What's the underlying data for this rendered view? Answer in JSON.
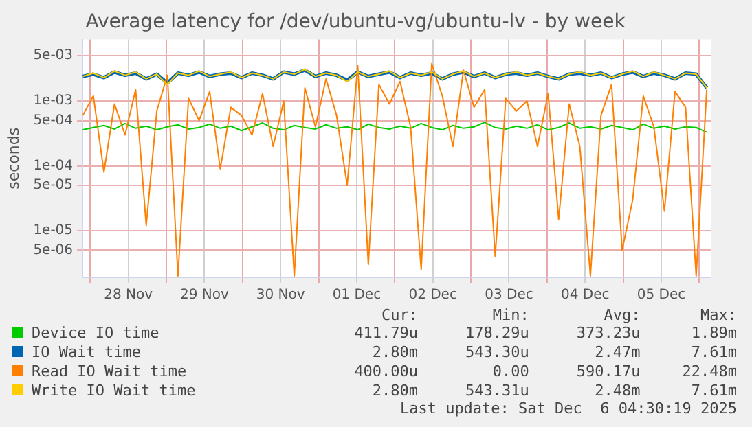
{
  "chart_data": {
    "type": "line",
    "title": "Average latency for /dev/ubuntu-vg/ubuntu-lv - by week",
    "ylabel": "seconds",
    "log": "y",
    "grid": true,
    "legend": "bottom",
    "marker": "none",
    "line_style": "solid",
    "x": [
      "2025-11-27T21:40",
      "2025-11-28T01:00",
      "2025-11-28T04:20",
      "2025-11-28T07:40",
      "2025-11-28T11:00",
      "2025-11-28T14:20",
      "2025-11-28T17:40",
      "2025-11-28T21:00",
      "2025-11-29T00:20",
      "2025-11-29T03:40",
      "2025-11-29T07:00",
      "2025-11-29T10:20",
      "2025-11-29T13:40",
      "2025-11-29T17:00",
      "2025-11-29T20:20",
      "2025-11-29T23:40",
      "2025-11-30T03:00",
      "2025-11-30T06:20",
      "2025-11-30T09:40",
      "2025-11-30T13:00",
      "2025-11-30T16:20",
      "2025-11-30T19:40",
      "2025-11-30T23:00",
      "2025-12-01T02:20",
      "2025-12-01T05:40",
      "2025-12-01T09:00",
      "2025-12-01T12:20",
      "2025-12-01T15:40",
      "2025-12-01T19:00",
      "2025-12-01T22:20",
      "2025-12-02T01:40",
      "2025-12-02T05:00",
      "2025-12-02T08:20",
      "2025-12-02T11:40",
      "2025-12-02T15:00",
      "2025-12-02T18:20",
      "2025-12-02T21:40",
      "2025-12-03T01:00",
      "2025-12-03T04:20",
      "2025-12-03T07:40",
      "2025-12-03T11:00",
      "2025-12-03T14:20",
      "2025-12-03T17:40",
      "2025-12-03T21:00",
      "2025-12-04T00:20",
      "2025-12-04T03:40",
      "2025-12-04T07:00",
      "2025-12-04T10:20",
      "2025-12-04T13:40",
      "2025-12-04T17:00",
      "2025-12-04T20:20",
      "2025-12-04T23:40",
      "2025-12-05T03:00",
      "2025-12-05T06:20",
      "2025-12-05T09:40",
      "2025-12-05T13:00",
      "2025-12-05T16:20",
      "2025-12-05T19:40",
      "2025-12-05T23:00",
      "2025-12-06T02:20"
    ],
    "xlim": [
      "2025-11-27T21:36",
      "2025-12-06T03:36"
    ],
    "xticks": [
      {
        "value": "2025-11-28",
        "label": null
      },
      {
        "value": "2025-11-28T12:00",
        "label": "28 Nov"
      },
      {
        "value": "2025-11-29",
        "label": null
      },
      {
        "value": "2025-11-29T12:00",
        "label": "29 Nov"
      },
      {
        "value": "2025-11-30",
        "label": null
      },
      {
        "value": "2025-11-30T12:00",
        "label": "30 Nov"
      },
      {
        "value": "2025-12-01",
        "label": null
      },
      {
        "value": "2025-12-01T12:00",
        "label": "01 Dec"
      },
      {
        "value": "2025-12-02",
        "label": null
      },
      {
        "value": "2025-12-02T12:00",
        "label": "02 Dec"
      },
      {
        "value": "2025-12-03",
        "label": null
      },
      {
        "value": "2025-12-03T12:00",
        "label": "03 Dec"
      },
      {
        "value": "2025-12-04",
        "label": null
      },
      {
        "value": "2025-12-04T12:00",
        "label": "04 Dec"
      },
      {
        "value": "2025-12-05",
        "label": null
      },
      {
        "value": "2025-12-05T12:00",
        "label": "05 Dec"
      },
      {
        "value": "2025-12-06",
        "label": null
      }
    ],
    "ylim": [
      1.9e-06,
      0.0089
    ],
    "yticks": [
      {
        "value": 5e-06,
        "label": "5e-06"
      },
      {
        "value": 1e-05,
        "label": "1e-05"
      },
      {
        "value": 5e-05,
        "label": "5e-05"
      },
      {
        "value": 0.0001,
        "label": "1e-04"
      },
      {
        "value": 0.0005,
        "label": "5e-04"
      },
      {
        "value": 0.001,
        "label": "1e-03"
      },
      {
        "value": 0.005,
        "label": "5e-03"
      }
    ],
    "series": [
      {
        "name": "Device IO time",
        "color": "#00cc00",
        "values": [
          0.00036,
          0.00039,
          0.00042,
          0.00037,
          0.00045,
          0.00038,
          0.00041,
          0.00036,
          0.0004,
          0.00043,
          0.00037,
          0.00039,
          0.00044,
          0.00038,
          0.00041,
          0.00035,
          0.0004,
          0.00046,
          0.00038,
          0.00036,
          0.00042,
          0.00039,
          0.00037,
          0.00043,
          0.00038,
          0.0004,
          0.00036,
          0.00044,
          0.00039,
          0.00037,
          0.00041,
          0.00038,
          0.00045,
          0.00039,
          0.00036,
          0.00042,
          0.00038,
          0.0004,
          0.00047,
          0.00039,
          0.00037,
          0.00041,
          0.00038,
          0.00043,
          0.00036,
          0.00039,
          0.00046,
          0.00038,
          0.0004,
          0.00037,
          0.00042,
          0.00039,
          0.00036,
          0.00044,
          0.00038,
          0.00041,
          0.00037,
          0.0004,
          0.00039,
          0.00033
        ]
      },
      {
        "name": "IO Wait time",
        "color": "#0066b3",
        "values": [
          0.0024,
          0.0026,
          0.0023,
          0.0028,
          0.0025,
          0.0027,
          0.0022,
          0.0026,
          0.0019,
          0.0027,
          0.0025,
          0.0028,
          0.0024,
          0.0026,
          0.0027,
          0.0023,
          0.0027,
          0.0025,
          0.0022,
          0.0028,
          0.0026,
          0.003,
          0.0024,
          0.0027,
          0.0025,
          0.0021,
          0.0028,
          0.0024,
          0.0026,
          0.0028,
          0.0023,
          0.0027,
          0.0025,
          0.0027,
          0.0022,
          0.0026,
          0.0028,
          0.0024,
          0.0027,
          0.0023,
          0.0026,
          0.0027,
          0.0025,
          0.0027,
          0.0024,
          0.0022,
          0.0026,
          0.0027,
          0.0025,
          0.0027,
          0.0023,
          0.0026,
          0.0028,
          0.0024,
          0.0027,
          0.0025,
          0.0022,
          0.0027,
          0.0026,
          0.0016
        ]
      },
      {
        "name": "Read IO Wait time",
        "color": "#ff8000",
        "values": [
          0.0006,
          0.0012,
          8e-05,
          0.0009,
          0.0003,
          0.0015,
          1.2e-05,
          0.0007,
          0.0025,
          2e-06,
          0.0011,
          0.0005,
          0.0014,
          9e-05,
          0.0008,
          0.0006,
          0.0003,
          0.0013,
          0.0002,
          0.001,
          2e-06,
          0.0016,
          0.0004,
          0.0022,
          0.0006,
          5e-05,
          0.0035,
          3e-06,
          0.0018,
          0.0009,
          0.002,
          0.0004,
          2.5e-06,
          0.0038,
          0.0012,
          0.0002,
          0.003,
          0.0008,
          0.0015,
          4e-06,
          0.0011,
          0.0007,
          0.001,
          0.0002,
          0.0013,
          1.5e-05,
          0.0009,
          0.0002,
          2e-06,
          0.0006,
          0.0018,
          5e-06,
          3e-05,
          0.0012,
          0.0004,
          2e-05,
          0.0014,
          0.0008,
          2e-06,
          0.0015
        ]
      },
      {
        "name": "Write IO Wait time",
        "color": "#ffcc00",
        "values": [
          0.0024,
          0.0027,
          0.0023,
          0.0029,
          0.0025,
          0.0028,
          0.0022,
          0.0026,
          0.0018,
          0.0027,
          0.0025,
          0.0029,
          0.0024,
          0.0026,
          0.0028,
          0.0023,
          0.0027,
          0.0025,
          0.0022,
          0.0028,
          0.0026,
          0.0031,
          0.0024,
          0.0027,
          0.0025,
          0.002,
          0.0028,
          0.0024,
          0.0026,
          0.0029,
          0.0023,
          0.0027,
          0.0025,
          0.0028,
          0.0022,
          0.0026,
          0.0029,
          0.0024,
          0.0027,
          0.0023,
          0.0026,
          0.0028,
          0.0025,
          0.0027,
          0.0024,
          0.0022,
          0.0026,
          0.0028,
          0.0025,
          0.0027,
          0.0023,
          0.0026,
          0.0029,
          0.0024,
          0.0028,
          0.0025,
          0.0022,
          0.0027,
          0.0026,
          0.0016
        ]
      }
    ],
    "annotations": [
      "Cur:",
      "Min:",
      "Avg:",
      "Max:",
      "411.79u",
      "178.29u",
      "373.23u",
      "1.89m",
      "2.80m",
      "543.30u",
      "2.47m",
      "7.61m",
      "400.00u",
      "0.00",
      "590.17u",
      "22.48m",
      "2.80m",
      "543.31u",
      "2.48m",
      "7.61m",
      "Last update: Sat Dec  6 04:30:19 2025"
    ]
  }
}
